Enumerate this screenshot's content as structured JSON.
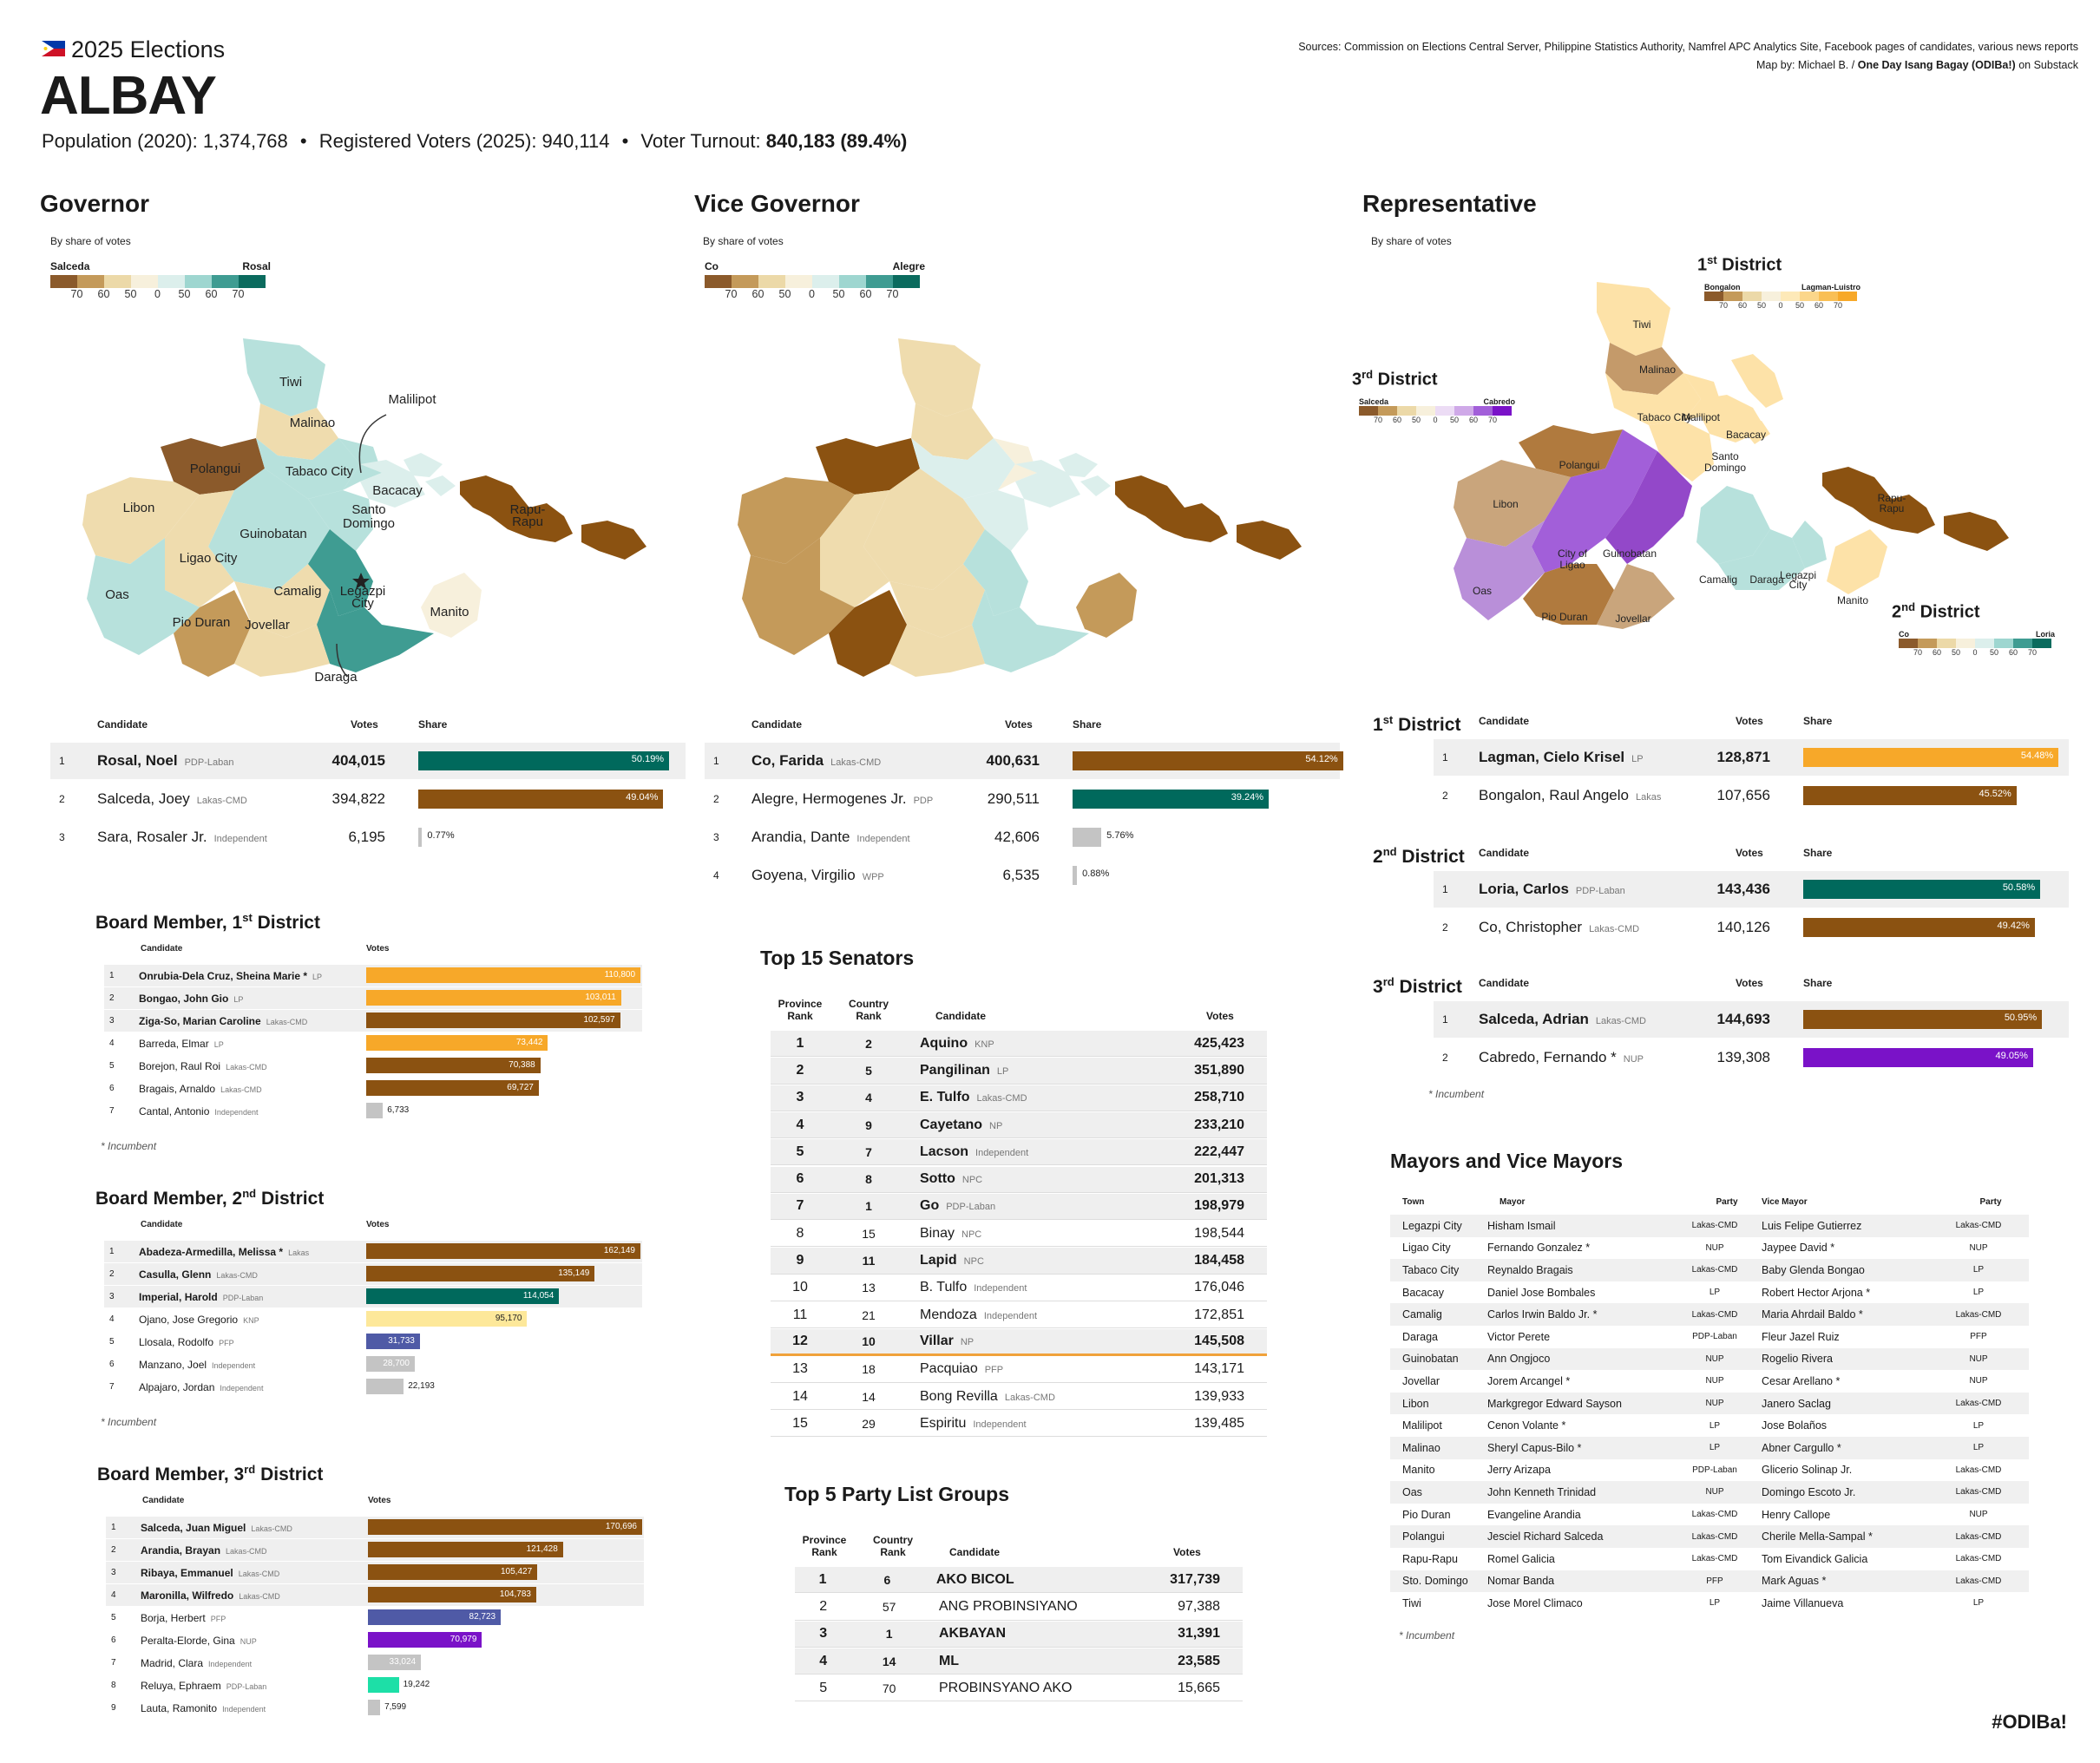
{
  "header": {
    "subtitle": "2025 Elections",
    "title": "ALBAY",
    "pop_label": "Population (2020): 1,374,768",
    "reg_label": "Registered Voters (2025): 940,114",
    "turnout_label": "Voter Turnout:",
    "turnout_value": "840,183 (89.4%)",
    "bullet": "•"
  },
  "sources": {
    "line1": "Sources: Commission on Elections Central Server, Philippine Statistics Authority, Namfrel APC Analytics Site, Facebook pages of candidates, various news reports",
    "line2_prefix": "Map by: Michael B. /",
    "line2_bold": "One Day Isang Bagay (ODIBa!)",
    "line2_suffix": "on Substack"
  },
  "colors": {
    "brown": "#8b5211",
    "teal": "#00695c",
    "orange": "#f7a829",
    "purple": "#7a12c8",
    "gray": "#c4c4c4",
    "blue": "#4f5aa6",
    "mint": "#1ddfa7",
    "lightyellow": "#fde89a",
    "lightpurple": "#b98fd9",
    "highlight": "#f0a23b"
  },
  "maps": {
    "governor": {
      "title": "Governor",
      "caption": "By share of votes",
      "left": "Salceda",
      "right": "Rosal",
      "ticks": [
        "70",
        "60",
        "50",
        "0",
        "50",
        "60",
        "70"
      ],
      "labels": {
        "tiwi": "Tiwi",
        "malinao": "Malinao",
        "malilipot": "Malilipot",
        "polangui": "Polangui",
        "tabaco": "Tabaco City",
        "bacacay": "Bacacay",
        "libon": "Libon",
        "santo": "Santo",
        "domingo": "Domingo",
        "rapu1": "Rapu-",
        "rapu2": "Rapu",
        "guinobatan": "Guinobatan",
        "ligao": "Ligao City",
        "oas": "Oas",
        "camalig": "Camalig",
        "legazpi1": "Legazpi",
        "legazpi2": "City",
        "manito": "Manito",
        "pioduran": "Pio Duran",
        "jovellar": "Jovellar",
        "daraga": "Daraga"
      }
    },
    "vice": {
      "title": "Vice Governor",
      "caption": "By share of votes",
      "left": "Co",
      "right": "Alegre",
      "ticks": [
        "70",
        "60",
        "50",
        "0",
        "50",
        "60",
        "70"
      ]
    },
    "rep": {
      "title": "Representative",
      "caption": "By share of votes",
      "d1": {
        "title": "1",
        "sup": "st",
        "suffix": " District",
        "left": "Bongalon",
        "right": "Lagman-Luistro",
        "ticks": [
          "70",
          "60",
          "50",
          "0",
          "50",
          "60",
          "70"
        ]
      },
      "d3": {
        "title": "3",
        "sup": "rd",
        "suffix": " District",
        "left": "Salceda",
        "right": "Cabredo",
        "ticks": [
          "70",
          "60",
          "50",
          "0",
          "50",
          "60",
          "70"
        ]
      },
      "d2": {
        "title": "2",
        "sup": "nd",
        "suffix": " District",
        "left": "Co",
        "right": "Loria",
        "ticks": [
          "70",
          "60",
          "50",
          "0",
          "50",
          "60",
          "70"
        ]
      },
      "labels": {
        "tiwi": "Tiwi",
        "malinao": "Malinao",
        "tabaco": "Tabaco City",
        "malilipot": "Malilipot",
        "bacacay": "Bacacay",
        "santo": "Santo",
        "domingo": "Domingo",
        "polangui": "Polangui",
        "libon": "Libon",
        "ligao1": "City of",
        "ligao2": "Ligao",
        "guinobatan": "Guinobatan",
        "oas": "Oas",
        "pioduran": "Pio Duran",
        "jovellar": "Jovellar",
        "camalig": "Camalig",
        "daraga": "Daraga",
        "legazpi1": "Legazpi",
        "legazpi2": "City",
        "rapu1": "Rapu-",
        "rapu2": "Rapu",
        "manito": "Manito"
      }
    }
  },
  "tables": {
    "cols": {
      "candidate": "Candidate",
      "votes": "Votes",
      "share": "Share"
    },
    "governor": [
      {
        "rank": "1",
        "name": "Rosal, Noel",
        "party": "PDP-Laban",
        "votes": "404,015",
        "share": "50.19%",
        "pct": 50.19,
        "color": "#00695c",
        "win": true
      },
      {
        "rank": "2",
        "name": "Salceda, Joey",
        "party": "Lakas-CMD",
        "votes": "394,822",
        "share": "49.04%",
        "pct": 49.04,
        "color": "#8b5211"
      },
      {
        "rank": "3",
        "name": "Sara, Rosaler Jr.",
        "party": "Independent",
        "votes": "6,195",
        "share": "0.77%",
        "pct": 0.77,
        "color": "#c4c4c4"
      }
    ],
    "vice": [
      {
        "rank": "1",
        "name": "Co, Farida",
        "party": "Lakas-CMD",
        "votes": "400,631",
        "share": "54.12%",
        "pct": 54.12,
        "color": "#8b5211",
        "win": true
      },
      {
        "rank": "2",
        "name": "Alegre, Hermogenes Jr.",
        "party": "PDP",
        "votes": "290,511",
        "share": "39.24%",
        "pct": 39.24,
        "color": "#00695c"
      },
      {
        "rank": "3",
        "name": "Arandia, Dante",
        "party": "Independent",
        "votes": "42,606",
        "share": "5.76%",
        "pct": 5.76,
        "color": "#c4c4c4"
      },
      {
        "rank": "4",
        "name": "Goyena, Virgilio",
        "party": "WPP",
        "votes": "6,535",
        "share": "0.88%",
        "pct": 0.88,
        "color": "#c4c4c4"
      }
    ],
    "rep1": {
      "title": "1",
      "sup": "st",
      "suffix": " District",
      "rows": [
        {
          "rank": "1",
          "name": "Lagman, Cielo Krisel",
          "party": "LP",
          "votes": "128,871",
          "share": "54.48%",
          "pct": 54.48,
          "color": "#f7a829",
          "win": true
        },
        {
          "rank": "2",
          "name": "Bongalon, Raul Angelo",
          "party": "Lakas",
          "votes": "107,656",
          "share": "45.52%",
          "pct": 45.52,
          "color": "#8b5211"
        }
      ]
    },
    "rep2": {
      "title": "2",
      "sup": "nd",
      "suffix": " District",
      "rows": [
        {
          "rank": "1",
          "name": "Loria, Carlos",
          "party": "PDP-Laban",
          "votes": "143,436",
          "share": "50.58%",
          "pct": 50.58,
          "color": "#00695c",
          "win": true
        },
        {
          "rank": "2",
          "name": "Co, Christopher",
          "party": "Lakas-CMD",
          "votes": "140,126",
          "share": "49.42%",
          "pct": 49.42,
          "color": "#8b5211"
        }
      ]
    },
    "rep3": {
      "title": "3",
      "sup": "rd",
      "suffix": " District",
      "rows": [
        {
          "rank": "1",
          "name": "Salceda, Adrian",
          "party": "Lakas-CMD",
          "votes": "144,693",
          "share": "50.95%",
          "pct": 50.95,
          "color": "#8b5211",
          "win": true
        },
        {
          "rank": "2",
          "name": "Cabredo, Fernando *",
          "party": "NUP",
          "votes": "139,308",
          "share": "49.05%",
          "pct": 49.05,
          "color": "#7a12c8"
        }
      ]
    },
    "incumbent": "* Incumbent"
  },
  "board": {
    "cols": {
      "candidate": "Candidate",
      "votes": "Votes"
    },
    "d1": {
      "title": "Board Member, 1",
      "sup": "st",
      "suffix": " District",
      "max": 110800,
      "rows": [
        {
          "rank": "1",
          "name": "Onrubia-Dela Cruz, Sheina Marie *",
          "party": "LP",
          "votes": "110,800",
          "v": 110800,
          "color": "#f7a829",
          "win": true
        },
        {
          "rank": "2",
          "name": "Bongao, John Gio",
          "party": "LP",
          "votes": "103,011",
          "v": 103011,
          "color": "#f7a829",
          "win": true
        },
        {
          "rank": "3",
          "name": "Ziga-So, Marian Caroline",
          "party": "Lakas-CMD",
          "votes": "102,597",
          "v": 102597,
          "color": "#8b5211",
          "win": true
        },
        {
          "rank": "4",
          "name": "Barreda, Elmar",
          "party": "LP",
          "votes": "73,442",
          "v": 73442,
          "color": "#f7a829"
        },
        {
          "rank": "5",
          "name": "Borejon, Raul Roi",
          "party": "Lakas-CMD",
          "votes": "70,388",
          "v": 70388,
          "color": "#8b5211"
        },
        {
          "rank": "6",
          "name": "Bragais, Arnaldo",
          "party": "Lakas-CMD",
          "votes": "69,727",
          "v": 69727,
          "color": "#8b5211"
        },
        {
          "rank": "7",
          "name": "Cantal, Antonio",
          "party": "Independent",
          "votes": "6,733",
          "v": 6733,
          "color": "#c4c4c4"
        }
      ]
    },
    "d2": {
      "title": "Board Member, 2",
      "sup": "nd",
      "suffix": " District",
      "max": 162149,
      "rows": [
        {
          "rank": "1",
          "name": "Abadeza-Armedilla, Melissa *",
          "party": "Lakas",
          "votes": "162,149",
          "v": 162149,
          "color": "#8b5211",
          "win": true
        },
        {
          "rank": "2",
          "name": "Casulla, Glenn",
          "party": "Lakas-CMD",
          "votes": "135,149",
          "v": 135149,
          "color": "#8b5211",
          "win": true
        },
        {
          "rank": "3",
          "name": "Imperial, Harold",
          "party": "PDP-Laban",
          "votes": "114,054",
          "v": 114054,
          "color": "#00695c",
          "win": true
        },
        {
          "rank": "4",
          "name": "Ojano, Jose Gregorio",
          "party": "KNP",
          "votes": "95,170",
          "v": 95170,
          "color": "#fde89a"
        },
        {
          "rank": "5",
          "name": "Llosala, Rodolfo",
          "party": "PFP",
          "votes": "31,733",
          "v": 31733,
          "color": "#4f5aa6"
        },
        {
          "rank": "6",
          "name": "Manzano, Joel",
          "party": "Independent",
          "votes": "28,700",
          "v": 28700,
          "color": "#c4c4c4"
        },
        {
          "rank": "7",
          "name": "Alpajaro, Jordan",
          "party": "Independent",
          "votes": "22,193",
          "v": 22193,
          "color": "#c4c4c4"
        }
      ]
    },
    "d3": {
      "title": "Board Member, 3",
      "sup": "rd",
      "suffix": " District",
      "max": 170696,
      "rows": [
        {
          "rank": "1",
          "name": "Salceda, Juan Miguel",
          "party": "Lakas-CMD",
          "votes": "170,696",
          "v": 170696,
          "color": "#8b5211",
          "win": true
        },
        {
          "rank": "2",
          "name": "Arandia, Brayan",
          "party": "Lakas-CMD",
          "votes": "121,428",
          "v": 121428,
          "color": "#8b5211",
          "win": true
        },
        {
          "rank": "3",
          "name": "Ribaya, Emmanuel",
          "party": "Lakas-CMD",
          "votes": "105,427",
          "v": 105427,
          "color": "#8b5211",
          "win": true
        },
        {
          "rank": "4",
          "name": "Maronilla, Wilfredo",
          "party": "Lakas-CMD",
          "votes": "104,783",
          "v": 104783,
          "color": "#8b5211",
          "win": true
        },
        {
          "rank": "5",
          "name": "Borja, Herbert",
          "party": "PFP",
          "votes": "82,723",
          "v": 82723,
          "color": "#4f5aa6"
        },
        {
          "rank": "6",
          "name": "Peralta-Elorde, Gina",
          "party": "NUP",
          "votes": "70,979",
          "v": 70979,
          "color": "#7a12c8"
        },
        {
          "rank": "7",
          "name": "Madrid, Clara",
          "party": "Independent",
          "votes": "33,024",
          "v": 33024,
          "color": "#c4c4c4"
        },
        {
          "rank": "8",
          "name": "Reluya, Ephraem",
          "party": "PDP-Laban",
          "votes": "19,242",
          "v": 19242,
          "color": "#1ddfa7"
        },
        {
          "rank": "9",
          "name": "Lauta, Ramonito",
          "party": "Independent",
          "votes": "7,599",
          "v": 7599,
          "color": "#c4c4c4"
        }
      ]
    }
  },
  "senators": {
    "title": "Top 15 Senators",
    "cols": {
      "prov1": "Province",
      "prov2": "Rank",
      "ctry1": "Country",
      "ctry2": "Rank",
      "candidate": "Candidate",
      "votes": "Votes"
    },
    "rows": [
      {
        "pr": "1",
        "cr": "2",
        "name": "Aquino",
        "party": "KNP",
        "votes": "425,423",
        "bold": true
      },
      {
        "pr": "2",
        "cr": "5",
        "name": "Pangilinan",
        "party": "LP",
        "votes": "351,890",
        "bold": true
      },
      {
        "pr": "3",
        "cr": "4",
        "name": "E. Tulfo",
        "party": "Lakas-CMD",
        "votes": "258,710",
        "bold": true
      },
      {
        "pr": "4",
        "cr": "9",
        "name": "Cayetano",
        "party": "NP",
        "votes": "233,210",
        "bold": true
      },
      {
        "pr": "5",
        "cr": "7",
        "name": "Lacson",
        "party": "Independent",
        "votes": "222,447",
        "bold": true
      },
      {
        "pr": "6",
        "cr": "8",
        "name": "Sotto",
        "party": "NPC",
        "votes": "201,313",
        "bold": true
      },
      {
        "pr": "7",
        "cr": "1",
        "name": "Go",
        "party": "PDP-Laban",
        "votes": "198,979",
        "bold": true
      },
      {
        "pr": "8",
        "cr": "15",
        "name": "Binay",
        "party": "NPC",
        "votes": "198,544",
        "bold": false
      },
      {
        "pr": "9",
        "cr": "11",
        "name": "Lapid",
        "party": "NPC",
        "votes": "184,458",
        "bold": true
      },
      {
        "pr": "10",
        "cr": "13",
        "name": "B. Tulfo",
        "party": "Independent",
        "votes": "176,046",
        "bold": false
      },
      {
        "pr": "11",
        "cr": "21",
        "name": "Mendoza",
        "party": "Independent",
        "votes": "172,851",
        "bold": false
      },
      {
        "pr": "12",
        "cr": "10",
        "name": "Villar",
        "party": "NP",
        "votes": "145,508",
        "bold": true
      },
      {
        "pr": "13",
        "cr": "18",
        "name": "Pacquiao",
        "party": "PFP",
        "votes": "143,171",
        "bold": false
      },
      {
        "pr": "14",
        "cr": "14",
        "name": "Bong Revilla",
        "party": "Lakas-CMD",
        "votes": "139,933",
        "bold": false
      },
      {
        "pr": "15",
        "cr": "29",
        "name": "Espiritu",
        "party": "Independent",
        "votes": "139,485",
        "bold": false
      }
    ]
  },
  "partylist": {
    "title": "Top 5 Party List Groups",
    "cols": {
      "prov1": "Province",
      "prov2": "Rank",
      "ctry1": "Country",
      "ctry2": "Rank",
      "candidate": "Candidate",
      "votes": "Votes"
    },
    "rows": [
      {
        "pr": "1",
        "cr": "6",
        "name": "AKO BICOL",
        "party": "",
        "votes": "317,739",
        "bold": true
      },
      {
        "pr": "2",
        "cr": "57",
        "name": "ANG PROBINSIYANO",
        "party": "",
        "votes": "97,388",
        "bold": false
      },
      {
        "pr": "3",
        "cr": "1",
        "name": "AKBAYAN",
        "party": "",
        "votes": "31,391",
        "bold": true
      },
      {
        "pr": "4",
        "cr": "14",
        "name": "ML",
        "party": "",
        "votes": "23,585",
        "bold": true
      },
      {
        "pr": "5",
        "cr": "70",
        "name": "PROBINSYANO AKO",
        "party": "",
        "votes": "15,665",
        "bold": false
      }
    ]
  },
  "mayors": {
    "title": "Mayors and Vice Mayors",
    "cols": {
      "town": "Town",
      "mayor": "Mayor",
      "party": "Party",
      "vice": "Vice Mayor",
      "vparty": "Party"
    },
    "rows": [
      [
        "Legazpi City",
        "Hisham Ismail",
        "Lakas-CMD",
        "Luis Felipe Gutierrez",
        "Lakas-CMD"
      ],
      [
        "Ligao City",
        "Fernando Gonzalez *",
        "NUP",
        "Jaypee David *",
        "NUP"
      ],
      [
        "Tabaco City",
        "Reynaldo Bragais",
        "Lakas-CMD",
        "Baby Glenda Bongao",
        "LP"
      ],
      [
        "Bacacay",
        "Daniel Jose Bombales",
        "LP",
        "Robert Hector Arjona *",
        "LP"
      ],
      [
        "Camalig",
        "Carlos Irwin Baldo Jr. *",
        "Lakas-CMD",
        "Maria Ahrdail Baldo *",
        "Lakas-CMD"
      ],
      [
        "Daraga",
        "Victor Perete",
        "PDP-Laban",
        "Fleur Jazel Ruiz",
        "PFP"
      ],
      [
        "Guinobatan",
        "Ann Ongjoco",
        "NUP",
        "Rogelio Rivera",
        "NUP"
      ],
      [
        "Jovellar",
        "Jorem Arcangel *",
        "NUP",
        "Cesar Arellano *",
        "NUP"
      ],
      [
        "Libon",
        "Markgregor Edward Sayson",
        "NUP",
        "Janero Saclag",
        "Lakas-CMD"
      ],
      [
        "Malilipot",
        "Cenon Volante *",
        "LP",
        "Jose Bolaños",
        "LP"
      ],
      [
        "Malinao",
        "Sheryl Capus-Bilo *",
        "LP",
        "Abner Cargullo *",
        "LP"
      ],
      [
        "Manito",
        "Jerry Arizapa",
        "PDP-Laban",
        "Glicerio Solinap Jr.",
        "Lakas-CMD"
      ],
      [
        "Oas",
        "John Kenneth Trinidad",
        "NUP",
        "Domingo Escoto Jr.",
        "Lakas-CMD"
      ],
      [
        "Pio Duran",
        "Evangeline Arandia",
        "Lakas-CMD",
        "Henry Callope",
        "NUP"
      ],
      [
        "Polangui",
        "Jesciel Richard Salceda",
        "Lakas-CMD",
        "Cherile Mella-Sampal *",
        "Lakas-CMD"
      ],
      [
        "Rapu-Rapu",
        "Romel Galicia",
        "Lakas-CMD",
        "Tom Eivandick Galicia",
        "Lakas-CMD"
      ],
      [
        "Sto. Domingo",
        "Nomar Banda",
        "PFP",
        "Mark Aguas *",
        "Lakas-CMD"
      ],
      [
        "Tiwi",
        "Jose Morel Climaco",
        "LP",
        "Jaime Villanueva",
        "LP"
      ]
    ]
  },
  "hashtag": "#ODIBa!"
}
